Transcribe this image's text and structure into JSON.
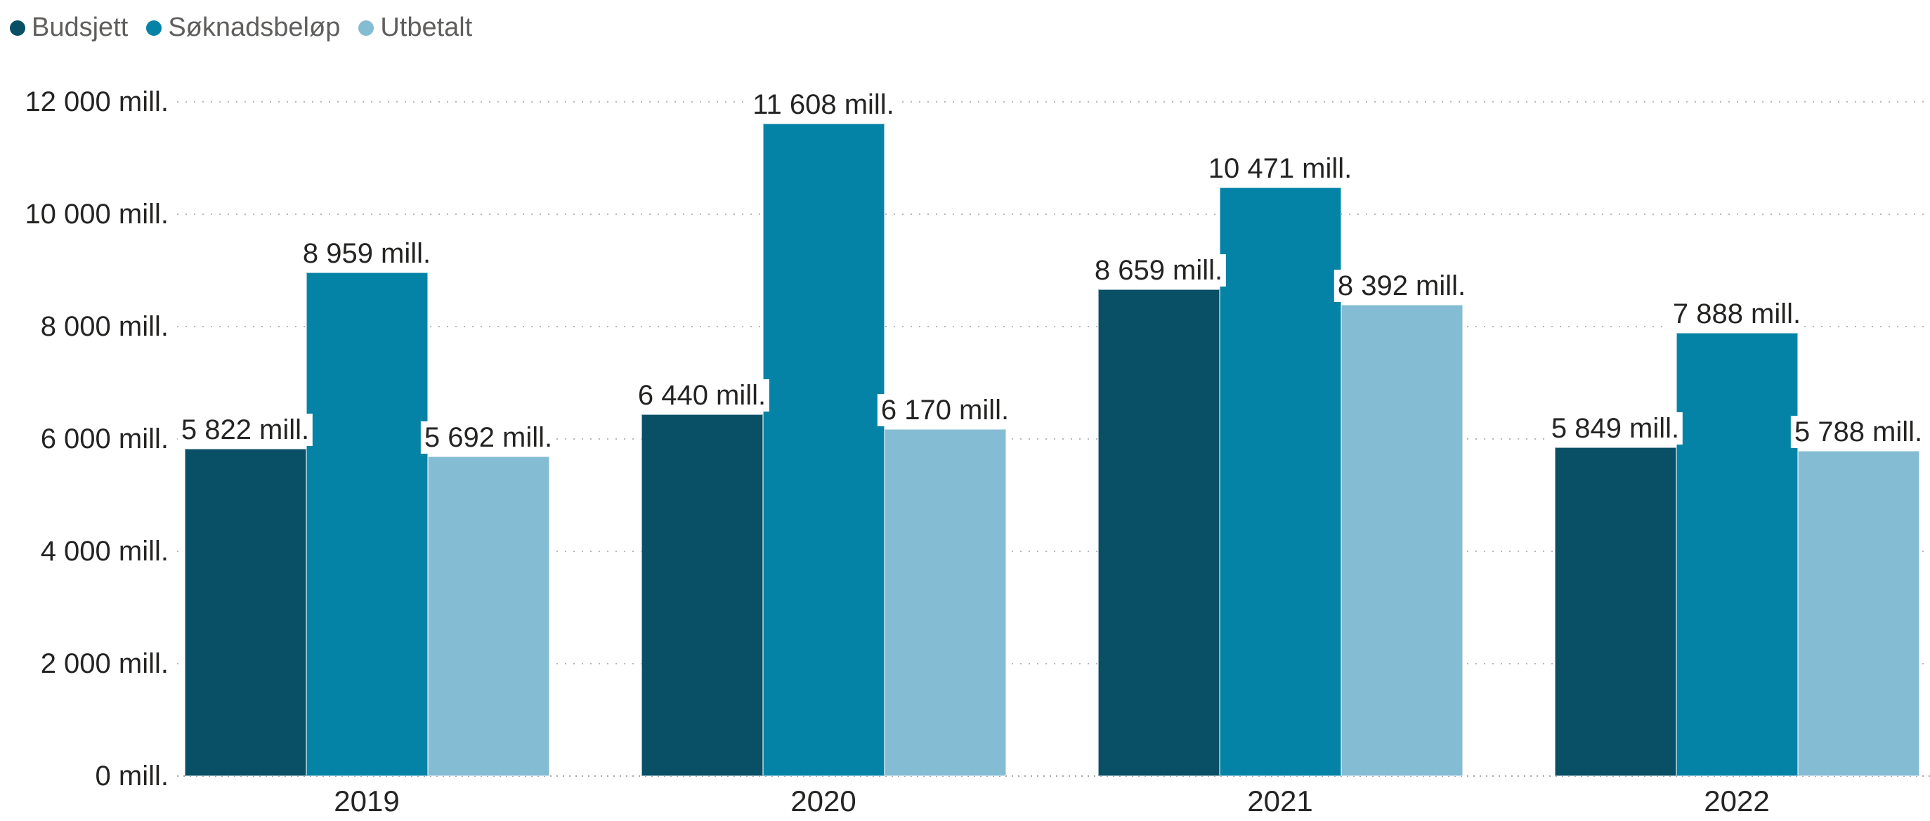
{
  "legend": {
    "items": [
      {
        "label": "Budsjett",
        "color": "#094F66"
      },
      {
        "label": "Søknadsbeløp",
        "color": "#0583A6"
      },
      {
        "label": "Utbetalt",
        "color": "#84BCD3"
      }
    ]
  },
  "chart_data": {
    "type": "bar",
    "title": "",
    "categories": [
      "2019",
      "2020",
      "2021",
      "2022"
    ],
    "series": [
      {
        "name": "Budsjett",
        "color": "#094F66",
        "values": [
          5822,
          6440,
          8659,
          5849
        ],
        "labels": [
          "5 822 mill.",
          "6 440 mill.",
          "8 659 mill.",
          "5 849 mill."
        ]
      },
      {
        "name": "Søknadsbeløp",
        "color": "#0583A6",
        "values": [
          8959,
          11608,
          10471,
          7888
        ],
        "labels": [
          "8 959 mill.",
          "11 608 mill.",
          "10 471 mill.",
          "7 888 mill."
        ]
      },
      {
        "name": "Utbetalt",
        "color": "#84BCD3",
        "values": [
          5692,
          6170,
          8392,
          5788
        ],
        "labels": [
          "5 692 mill.",
          "6 170 mill.",
          "8 392 mill.",
          "5 788 mill."
        ]
      }
    ],
    "y_axis": {
      "min": 0,
      "max": 12000,
      "ticks": [
        {
          "value": 0,
          "label": "0 mill."
        },
        {
          "value": 2000,
          "label": "2 000 mill."
        },
        {
          "value": 4000,
          "label": "4 000 mill."
        },
        {
          "value": 6000,
          "label": "6 000 mill."
        },
        {
          "value": 8000,
          "label": "8 000 mill."
        },
        {
          "value": 10000,
          "label": "10 000 mill."
        },
        {
          "value": 12000,
          "label": "12 000 mill."
        }
      ]
    },
    "grid": "dotted-horizontal",
    "legend_position": "top-left",
    "colors": {
      "axis_text": "#252423",
      "legend_text": "#605E5C",
      "gridline": "#b9b7b5",
      "background": "#ffffff"
    }
  }
}
